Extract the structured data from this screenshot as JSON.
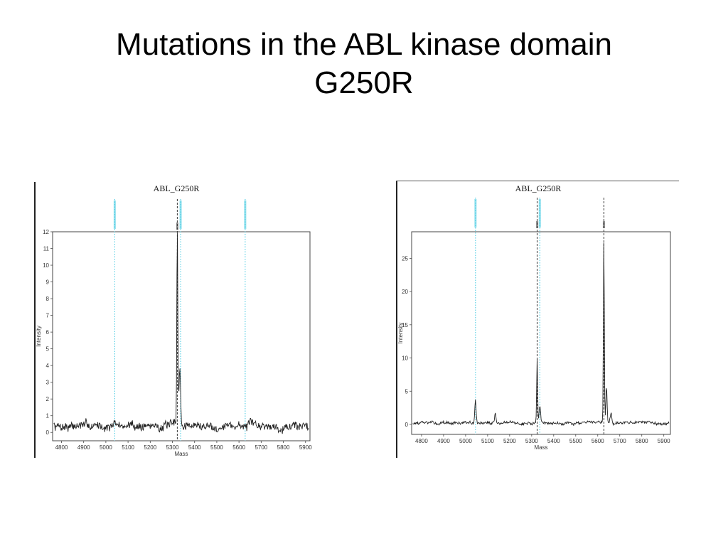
{
  "slide": {
    "title_line1": "Mutations in the ABL kinase domain",
    "title_line2": "G250R"
  },
  "chart_data": [
    {
      "type": "line",
      "title": "ABL_G250R",
      "xlabel": "Mass",
      "ylabel": "Intensity",
      "xlim": [
        4760,
        5920
      ],
      "ylim": [
        -0.5,
        12
      ],
      "x_ticks": [
        4800,
        4900,
        5000,
        5100,
        5200,
        5300,
        5400,
        5500,
        5600,
        5700,
        5800,
        5900
      ],
      "x_tick_labels": [
        "4800",
        "4900",
        "5000",
        "5100",
        "5200",
        "5300",
        "5400",
        "5500",
        "5600",
        "5700",
        "5800",
        "5900"
      ],
      "y_ticks": [
        0,
        1,
        2,
        3,
        4,
        5,
        6,
        7,
        8,
        9,
        10,
        11,
        12
      ],
      "y_tick_labels": [
        "0",
        "1",
        "2",
        "3",
        "4",
        "5",
        "6",
        "7",
        "8",
        "9",
        "10",
        "11",
        "12"
      ],
      "grid": false,
      "markers": [
        {
          "x": 5040,
          "style": "dotted",
          "color": "#3ec8e0"
        },
        {
          "x": 5337,
          "style": "dotted",
          "color": "#3ec8e0"
        },
        {
          "x": 5322,
          "style": "dashed",
          "color": "#333333"
        },
        {
          "x": 5628,
          "style": "dotted",
          "color": "#3ec8e0"
        }
      ],
      "peaks": [
        {
          "x": 5322,
          "y": 11.6,
          "width": 3
        },
        {
          "x": 5334,
          "y": 3.0,
          "width": 4
        },
        {
          "x": 5328,
          "y": 1.4,
          "width": 6
        }
      ],
      "noise": {
        "baseline": 0.4,
        "amplitude": 0.4,
        "seed": 7
      },
      "series_color": "#222222"
    },
    {
      "type": "line",
      "title": "ABL_G250R",
      "xlabel": "Mass",
      "ylabel": "Intensity",
      "xlim": [
        4755,
        5930
      ],
      "ylim": [
        -1.5,
        29
      ],
      "x_ticks": [
        4800,
        4900,
        5000,
        5100,
        5200,
        5300,
        5400,
        5500,
        5600,
        5700,
        5800,
        5900
      ],
      "x_tick_labels": [
        "4800",
        "4900",
        "5000",
        "5100",
        "5200",
        "5300",
        "5400",
        "5500",
        "5600",
        "5700",
        "5800",
        "5900"
      ],
      "y_ticks": [
        0,
        5,
        10,
        15,
        20,
        25
      ],
      "y_tick_labels": [
        "0",
        "5",
        "10",
        "15",
        "20",
        "25"
      ],
      "grid": false,
      "markers": [
        {
          "x": 5045,
          "style": "dotted",
          "color": "#3ec8e0"
        },
        {
          "x": 5337,
          "style": "dotted",
          "color": "#3ec8e0"
        },
        {
          "x": 5325,
          "style": "dashed",
          "color": "#333333"
        },
        {
          "x": 5628,
          "style": "dashed",
          "color": "#333333"
        }
      ],
      "peaks": [
        {
          "x": 5045,
          "y": 3.5,
          "width": 4
        },
        {
          "x": 5135,
          "y": 1.6,
          "width": 4
        },
        {
          "x": 5325,
          "y": 9.5,
          "width": 3
        },
        {
          "x": 5337,
          "y": 2.5,
          "width": 5
        },
        {
          "x": 5628,
          "y": 27.5,
          "width": 3
        },
        {
          "x": 5640,
          "y": 5.5,
          "width": 4
        },
        {
          "x": 5660,
          "y": 1.5,
          "width": 5
        }
      ],
      "noise": {
        "baseline": 0.2,
        "amplitude": 0.35,
        "seed": 13
      },
      "series_color": "#222222"
    }
  ]
}
